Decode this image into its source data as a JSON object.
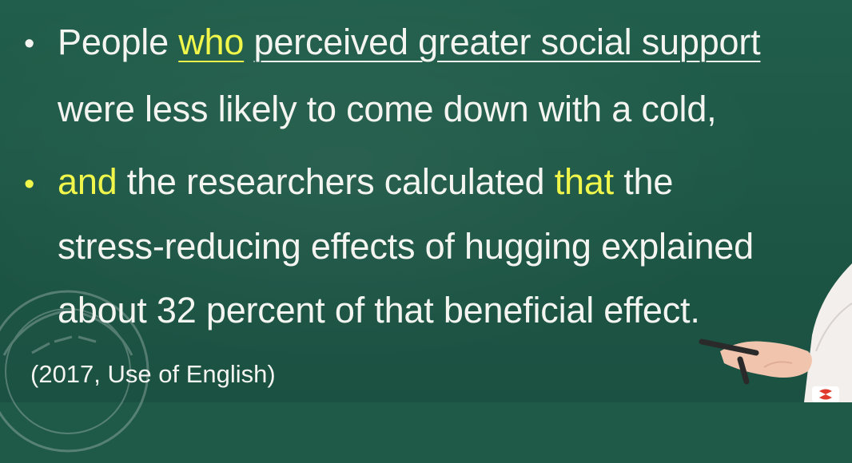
{
  "bullets": [
    {
      "symbol": "•",
      "lines": [
        {
          "parts": [
            {
              "text": "People ",
              "style": "normal"
            },
            {
              "text": "who",
              "style": "yellow-underlined"
            },
            {
              "text": " ",
              "style": "normal"
            },
            {
              "text": "perceived greater social support",
              "style": "white-underlined"
            }
          ]
        },
        {
          "parts": [
            {
              "text": "were less likely to come down with a cold,",
              "style": "normal"
            }
          ]
        }
      ]
    },
    {
      "symbol": "•",
      "lines": [
        {
          "parts": [
            {
              "text": "and",
              "style": "yellow"
            },
            {
              "text": " the researchers calculated ",
              "style": "normal"
            },
            {
              "text": "that",
              "style": "yellow"
            },
            {
              "text": " the",
              "style": "normal"
            }
          ]
        },
        {
          "parts": [
            {
              "text": "stress-reducing effects of hugging explained",
              "style": "normal"
            }
          ]
        },
        {
          "parts": [
            {
              "text": "about 32 percent of that beneficial effect.",
              "style": "normal"
            }
          ]
        }
      ]
    }
  ],
  "citation": "(2017, Use of English)",
  "colors": {
    "board": "#1f5a48",
    "text": "#f4f4f1",
    "highlight": "#f0f64a"
  }
}
